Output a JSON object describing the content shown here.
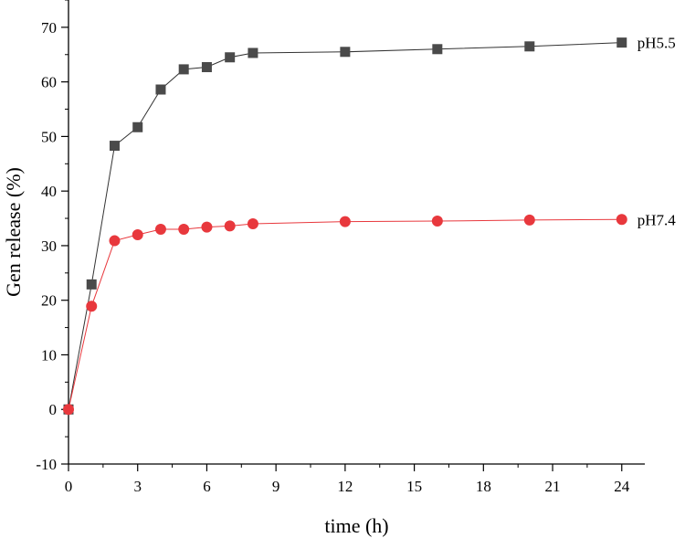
{
  "chart_data": {
    "type": "line",
    "xlabel": "time (h)",
    "ylabel": "Gen release (%)",
    "xlim": [
      0,
      25
    ],
    "ylim": [
      -10,
      75
    ],
    "xticks": [
      0,
      3,
      6,
      9,
      12,
      15,
      18,
      21,
      24
    ],
    "yticks": [
      -10,
      0,
      10,
      20,
      30,
      40,
      50,
      60,
      70
    ],
    "grid": false,
    "legend": "inline labels at the end of each series",
    "series": [
      {
        "name": "pH5.5",
        "marker": "square",
        "color": "#4a4a4a",
        "line_color": "#333333",
        "x": [
          0,
          1,
          2,
          3,
          4,
          5,
          6,
          7,
          8,
          12,
          16,
          20,
          24
        ],
        "values": [
          0,
          22.9,
          48.3,
          51.7,
          58.6,
          62.3,
          62.7,
          64.5,
          65.3,
          65.5,
          66.0,
          66.5,
          67.2
        ]
      },
      {
        "name": "pH7.4",
        "marker": "circle",
        "color": "#e8383d",
        "line_color": "#e8383d",
        "x": [
          0,
          1,
          2,
          3,
          4,
          5,
          6,
          7,
          8,
          12,
          16,
          20,
          24
        ],
        "values": [
          0,
          18.9,
          30.9,
          32.0,
          33.0,
          33.0,
          33.4,
          33.6,
          34.0,
          34.4,
          34.5,
          34.7,
          34.8
        ]
      }
    ]
  }
}
